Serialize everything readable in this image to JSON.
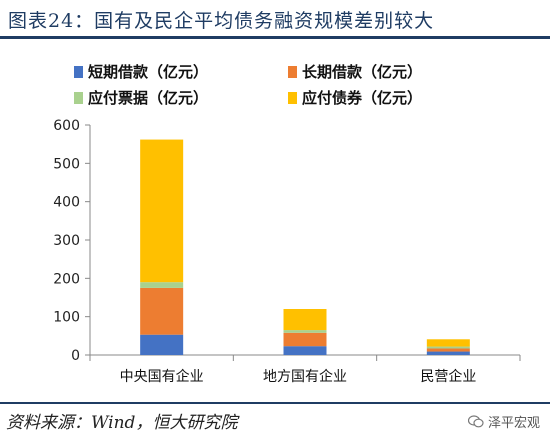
{
  "title": "图表24：国有及民企平均债务融资规模差别较大",
  "source": "资料来源：Wind，恒大研究院",
  "watermark": "泽平宏观",
  "chart_data": {
    "type": "bar",
    "stacked": true,
    "categories": [
      "中央国有企业",
      "地方国有企业",
      "民营企业"
    ],
    "series": [
      {
        "name": "短期借款（亿元）",
        "color": "#4472c4",
        "values": [
          53,
          23,
          9
        ]
      },
      {
        "name": "长期借款（亿元）",
        "color": "#ed7d31",
        "values": [
          122,
          35,
          8
        ]
      },
      {
        "name": "应付票据（亿元）",
        "color": "#a9d18e",
        "values": [
          15,
          7,
          5
        ]
      },
      {
        "name": "应付债券（亿元）",
        "color": "#ffc000",
        "values": [
          372,
          55,
          19
        ]
      }
    ],
    "yticks": [
      0,
      100,
      200,
      300,
      400,
      500,
      600
    ],
    "ylim": [
      0,
      600
    ],
    "legend_position": "top",
    "grid": false
  }
}
